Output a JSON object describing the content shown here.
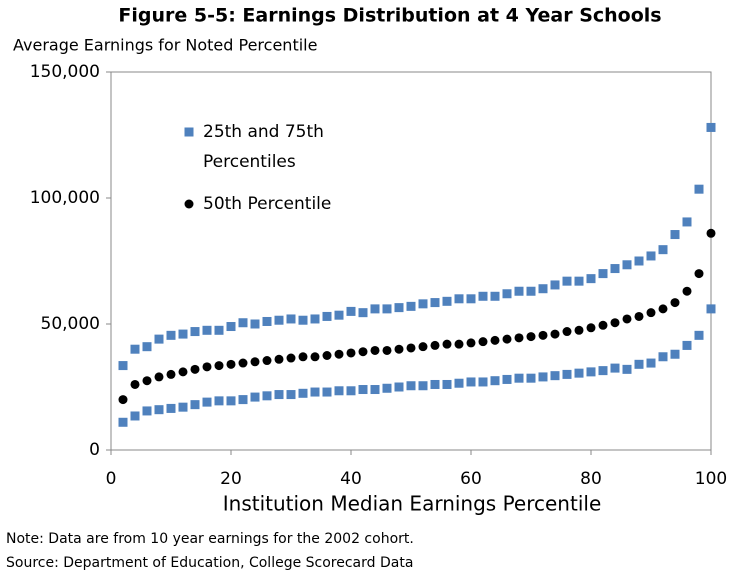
{
  "chart_data": {
    "type": "scatter",
    "title": "Figure 5-5: Earnings Distribution at 4 Year Schools",
    "subtitle": "Average Earnings for Noted Percentile",
    "x_label": "Institution Median Earnings Percentile",
    "notes": [
      "Note: Data are from 10 year earnings for the 2002 cohort.",
      "Source:  Department of Education, College Scorecard Data"
    ],
    "x": [
      2,
      4,
      6,
      8,
      10,
      12,
      14,
      16,
      18,
      20,
      22,
      24,
      26,
      28,
      30,
      32,
      34,
      36,
      38,
      40,
      42,
      44,
      46,
      48,
      50,
      52,
      54,
      56,
      58,
      60,
      62,
      64,
      66,
      68,
      70,
      72,
      74,
      76,
      78,
      80,
      82,
      84,
      86,
      88,
      90,
      92,
      94,
      96,
      98,
      100
    ],
    "series": [
      {
        "name": "25th and 75th Percentiles",
        "color": "#4f81bd",
        "marker": "square",
        "values": [
          11000,
          13500,
          15500,
          16000,
          16500,
          17000,
          18000,
          19000,
          19500,
          19500,
          20000,
          21000,
          21500,
          22000,
          22000,
          22500,
          23000,
          23000,
          23500,
          23500,
          24000,
          24000,
          24500,
          25000,
          25500,
          25500,
          26000,
          26000,
          26500,
          27000,
          27000,
          27500,
          28000,
          28500,
          28500,
          29000,
          29500,
          30000,
          30500,
          31000,
          31500,
          32500,
          32000,
          34000,
          34500,
          37000,
          38000,
          41500,
          45500,
          56000
        ]
      },
      {
        "name": "50th Percentile",
        "color": "#000000",
        "marker": "circle",
        "values": [
          20000,
          26000,
          27500,
          29000,
          30000,
          31000,
          32000,
          33000,
          33500,
          34000,
          34500,
          35000,
          35500,
          36000,
          36500,
          37000,
          37000,
          37500,
          38000,
          38500,
          39000,
          39500,
          39500,
          40000,
          40500,
          41000,
          41500,
          42000,
          42000,
          42500,
          43000,
          43500,
          44000,
          44500,
          45000,
          45500,
          46000,
          47000,
          47500,
          48500,
          49500,
          50500,
          52000,
          53000,
          54500,
          56000,
          58500,
          63000,
          70000,
          86000
        ]
      },
      {
        "color": "#4f81bd",
        "marker": "square",
        "values": [
          33500,
          40000,
          41000,
          44000,
          45500,
          46000,
          47000,
          47500,
          47500,
          49000,
          50500,
          50000,
          51000,
          51500,
          52000,
          51500,
          52000,
          53000,
          53500,
          55000,
          54500,
          56000,
          56000,
          56500,
          57000,
          58000,
          58500,
          59000,
          60000,
          60000,
          61000,
          61000,
          62000,
          63000,
          63000,
          64000,
          65500,
          67000,
          67000,
          68000,
          70000,
          72000,
          73500,
          75000,
          77000,
          79500,
          85500,
          90500,
          103500,
          128000
        ]
      }
    ],
    "xlim": [
      0,
      100
    ],
    "xticks": [
      0,
      20,
      40,
      60,
      80,
      100
    ],
    "ylim": [
      0,
      150000
    ],
    "yticks": [
      0,
      {
        "value": 50000,
        "label": "50,000"
      },
      {
        "value": 100000,
        "label": "100,000"
      },
      {
        "value": 150000,
        "label": "150,000"
      }
    ]
  }
}
